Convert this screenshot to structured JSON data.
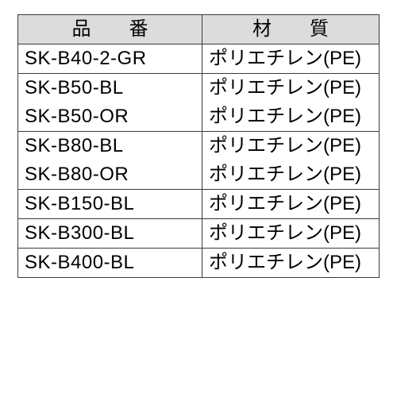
{
  "table": {
    "headers": {
      "part_no": "品　番",
      "material": "材　質"
    },
    "background_header": "#dcdcdc",
    "border_color": "#3a3a3a",
    "font_size_pt": 18,
    "col_widths_pct": [
      51,
      49
    ],
    "groups": [
      {
        "rows": [
          {
            "part_no": "SK-B40-2-GR",
            "material": "ポリエチレン(PE)"
          }
        ]
      },
      {
        "rows": [
          {
            "part_no": "SK-B50-BL",
            "material": "ポリエチレン(PE)"
          },
          {
            "part_no": "SK-B50-OR",
            "material": "ポリエチレン(PE)"
          }
        ]
      },
      {
        "rows": [
          {
            "part_no": "SK-B80-BL",
            "material": "ポリエチレン(PE)"
          },
          {
            "part_no": "SK-B80-OR",
            "material": "ポリエチレン(PE)"
          }
        ]
      },
      {
        "rows": [
          {
            "part_no": "SK-B150-BL",
            "material": "ポリエチレン(PE)"
          }
        ]
      },
      {
        "rows": [
          {
            "part_no": "SK-B300-BL",
            "material": "ポリエチレン(PE)"
          }
        ]
      },
      {
        "rows": [
          {
            "part_no": "SK-B400-BL",
            "material": "ポリエチレン(PE)"
          }
        ]
      }
    ]
  }
}
